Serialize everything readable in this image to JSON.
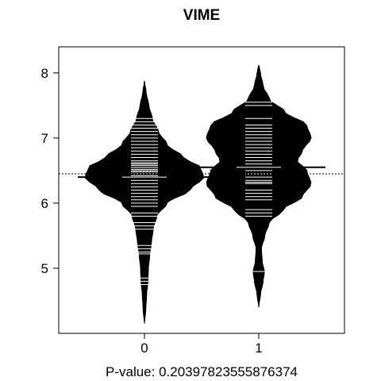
{
  "chart_data": {
    "type": "beanplot",
    "title": "VIME",
    "xlabel": "P-value: 0.20397823555876374",
    "ylabel": "",
    "categories": [
      "0",
      "1"
    ],
    "ylim": [
      4.0,
      8.4
    ],
    "yticks": [
      5,
      6,
      7,
      8
    ],
    "overall_mean": 6.45,
    "grid": false,
    "series": [
      {
        "category": "0",
        "mean": 6.4,
        "min": 4.15,
        "max": 7.88,
        "density": [
          [
            4.15,
            0.0
          ],
          [
            4.35,
            0.015
          ],
          [
            4.6,
            0.025
          ],
          [
            4.8,
            0.04
          ],
          [
            5.0,
            0.045
          ],
          [
            5.2,
            0.06
          ],
          [
            5.4,
            0.08
          ],
          [
            5.6,
            0.1
          ],
          [
            5.8,
            0.14
          ],
          [
            6.0,
            0.26
          ],
          [
            6.2,
            0.52
          ],
          [
            6.4,
            0.68
          ],
          [
            6.55,
            0.64
          ],
          [
            6.7,
            0.45
          ],
          [
            6.9,
            0.26
          ],
          [
            7.1,
            0.16
          ],
          [
            7.3,
            0.09
          ],
          [
            7.5,
            0.05
          ],
          [
            7.7,
            0.02
          ],
          [
            7.88,
            0.0
          ]
        ],
        "points": [
          4.75,
          4.8,
          4.85,
          5.22,
          5.25,
          5.3,
          5.35,
          5.6,
          5.65,
          5.7,
          5.8,
          5.85,
          5.95,
          6.0,
          6.05,
          6.1,
          6.15,
          6.2,
          6.25,
          6.3,
          6.35,
          6.4,
          6.42,
          6.45,
          6.48,
          6.5,
          6.52,
          6.55,
          6.58,
          6.6,
          6.62,
          6.65,
          6.7,
          6.75,
          6.8,
          6.85,
          6.9,
          6.95,
          7.0,
          7.05,
          7.1,
          7.15,
          7.2,
          7.25,
          7.3
        ]
      },
      {
        "category": "1",
        "mean": 6.55,
        "min": 4.4,
        "max": 8.12,
        "density": [
          [
            4.4,
            0.0
          ],
          [
            4.6,
            0.02
          ],
          [
            4.8,
            0.05
          ],
          [
            4.95,
            0.065
          ],
          [
            5.1,
            0.04
          ],
          [
            5.3,
            0.03
          ],
          [
            5.5,
            0.07
          ],
          [
            5.7,
            0.12
          ],
          [
            5.9,
            0.28
          ],
          [
            6.1,
            0.5
          ],
          [
            6.3,
            0.6
          ],
          [
            6.5,
            0.55
          ],
          [
            6.65,
            0.44
          ],
          [
            6.8,
            0.5
          ],
          [
            7.0,
            0.6
          ],
          [
            7.2,
            0.55
          ],
          [
            7.4,
            0.3
          ],
          [
            7.6,
            0.12
          ],
          [
            7.8,
            0.05
          ],
          [
            8.0,
            0.02
          ],
          [
            8.12,
            0.0
          ]
        ],
        "points": [
          4.95,
          5.8,
          5.85,
          5.9,
          6.05,
          6.1,
          6.15,
          6.2,
          6.3,
          6.32,
          6.35,
          6.4,
          6.45,
          6.5,
          6.55,
          6.6,
          6.65,
          6.7,
          6.75,
          6.8,
          6.85,
          6.9,
          6.95,
          7.0,
          7.05,
          7.1,
          7.15,
          7.2,
          7.3,
          7.5,
          7.55
        ]
      }
    ]
  }
}
